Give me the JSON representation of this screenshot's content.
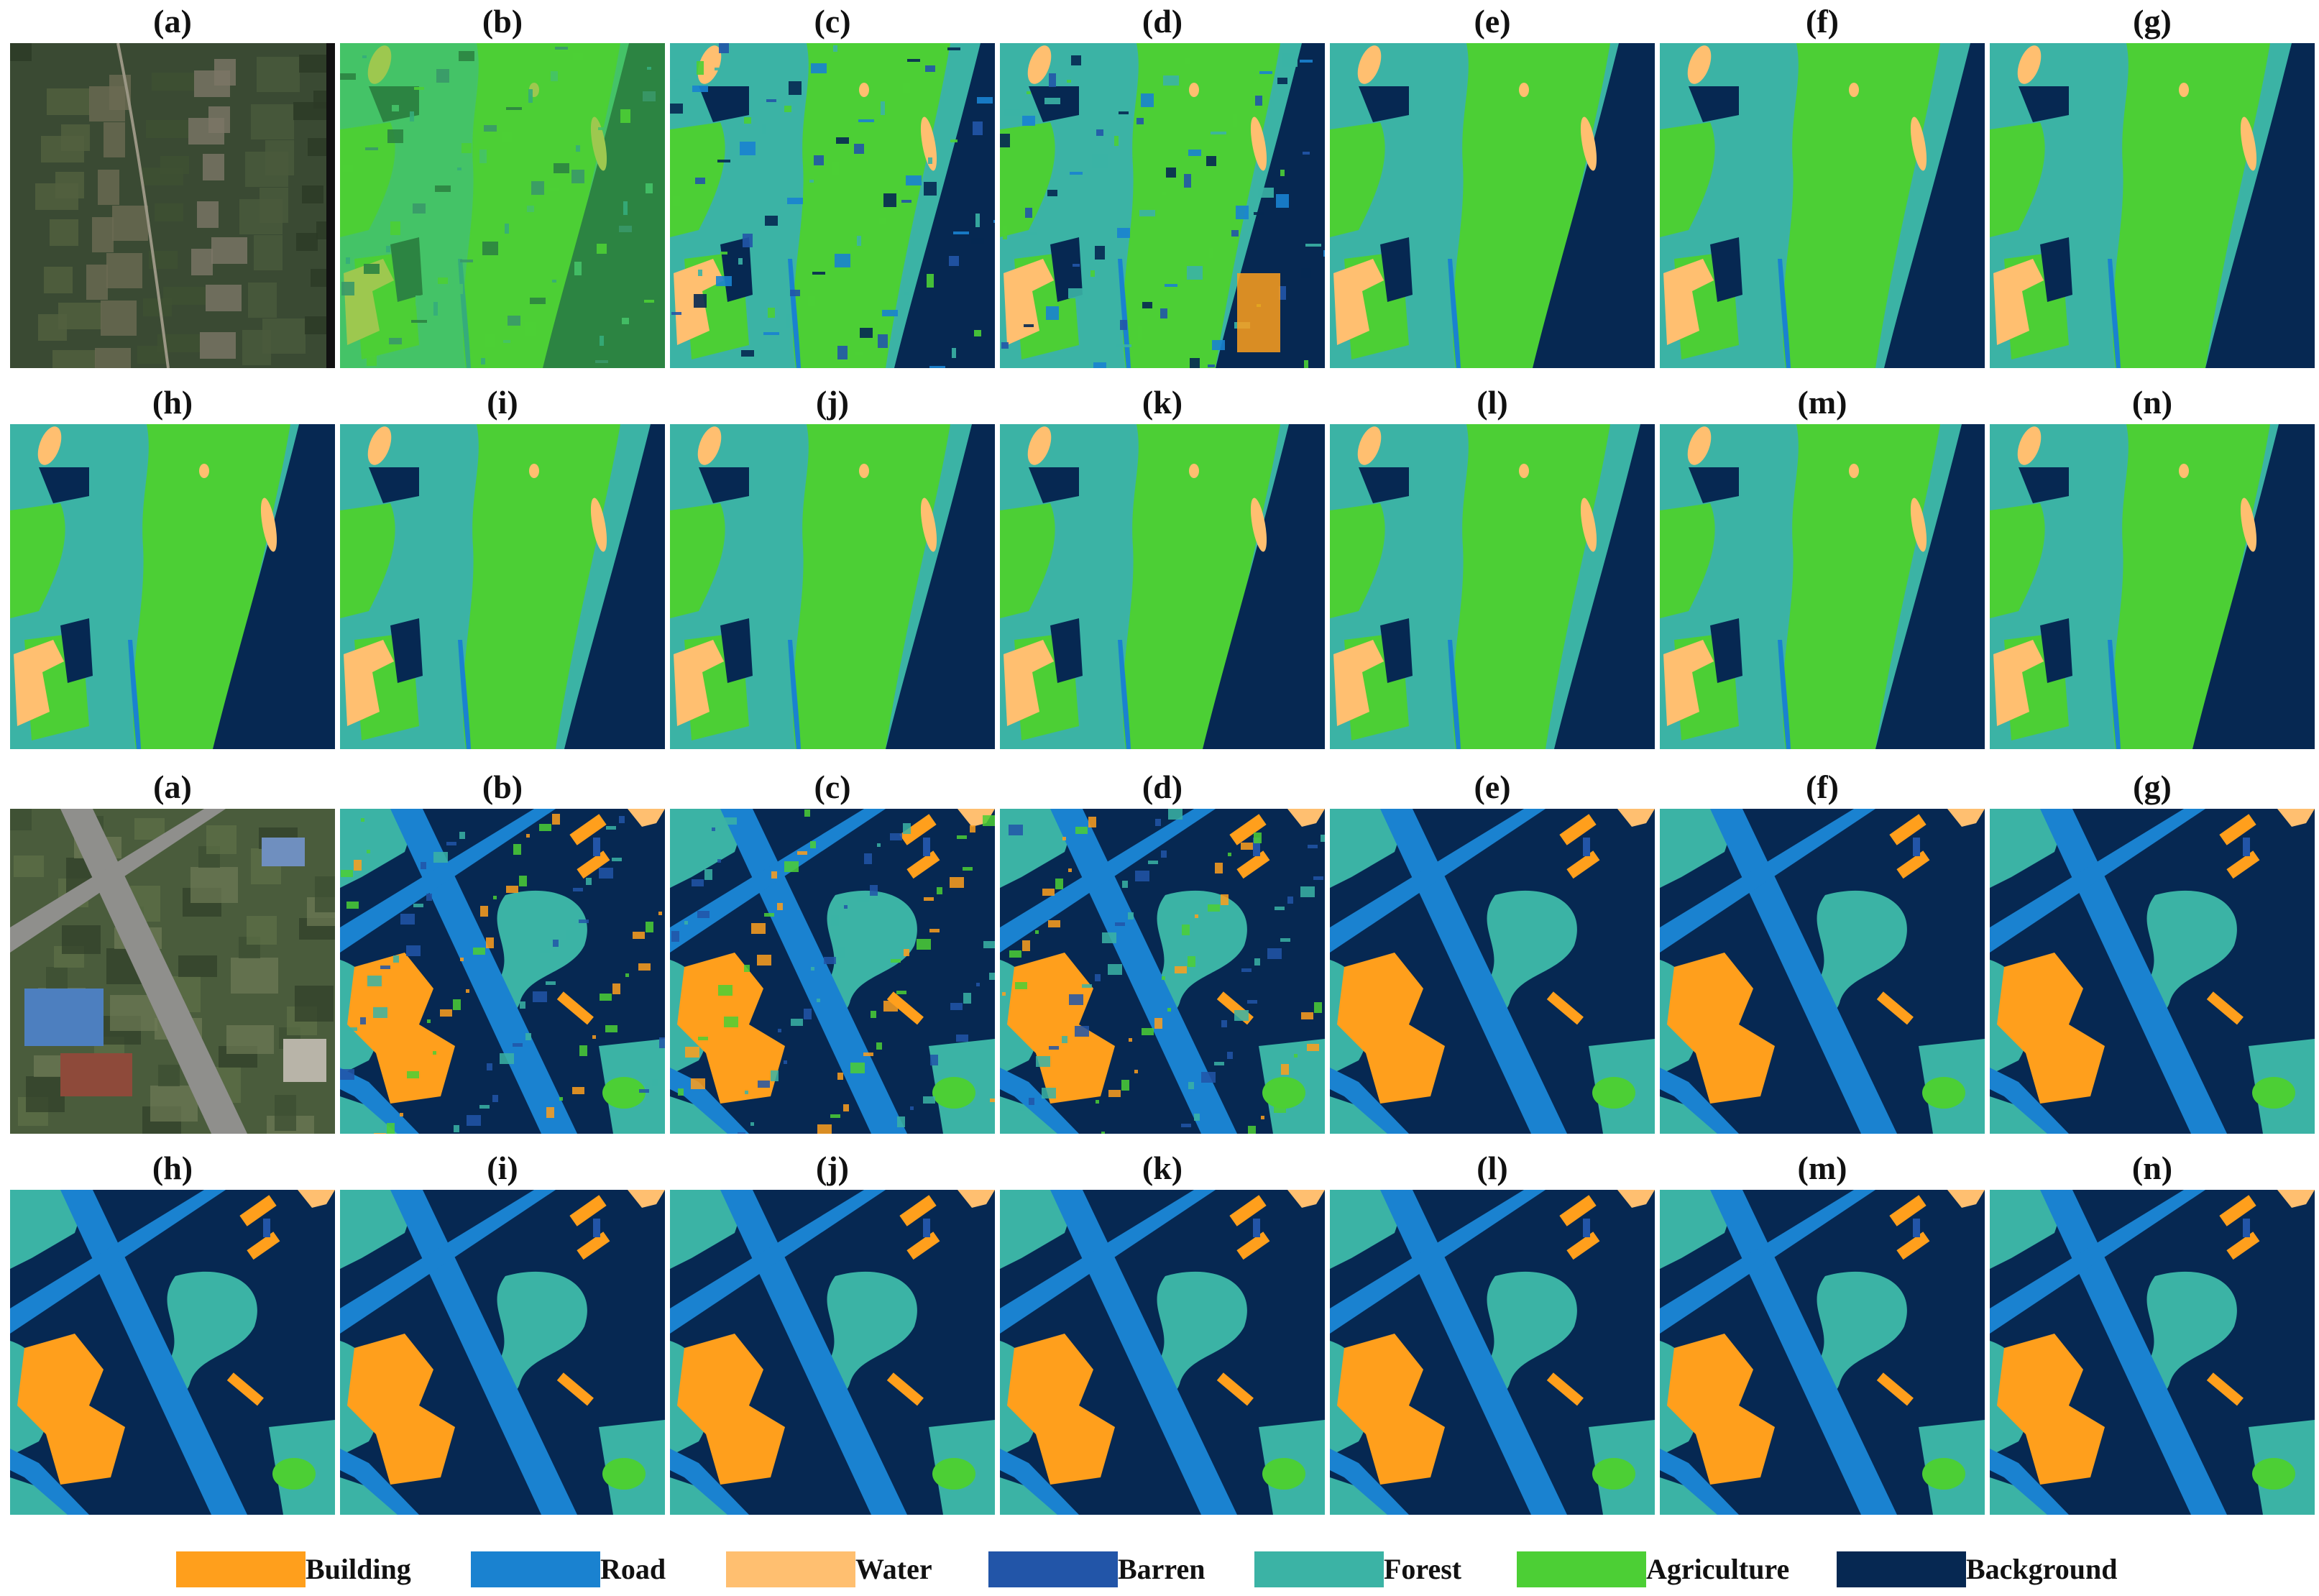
{
  "classes": {
    "building": {
      "name": "Building",
      "color": "#ff9f1c"
    },
    "road": {
      "name": "Road",
      "color": "#1a82d0"
    },
    "water": {
      "name": "Water",
      "color": "#ffbf70"
    },
    "barren": {
      "name": "Barren",
      "color": "#2255a8"
    },
    "forest": {
      "name": "Forest",
      "color": "#3bb3a5"
    },
    "agriculture": {
      "name": "Agriculture",
      "color": "#4ccf35"
    },
    "background": {
      "name": "Background",
      "color": "#062852"
    }
  },
  "legend": [
    "building",
    "road",
    "water",
    "barren",
    "forest",
    "agriculture",
    "background"
  ],
  "panel_labels_row1": [
    "(a)",
    "(b)",
    "(c)",
    "(d)",
    "(e)",
    "(f)",
    "(g)"
  ],
  "panel_labels_row2": [
    "(h)",
    "(i)",
    "(j)",
    "(k)",
    "(l)",
    "(m)",
    "(n)"
  ],
  "scenes": [
    {
      "id": "scene-1",
      "type": "agricultural-rural"
    },
    {
      "id": "scene-2",
      "type": "urban-intersection"
    }
  ]
}
